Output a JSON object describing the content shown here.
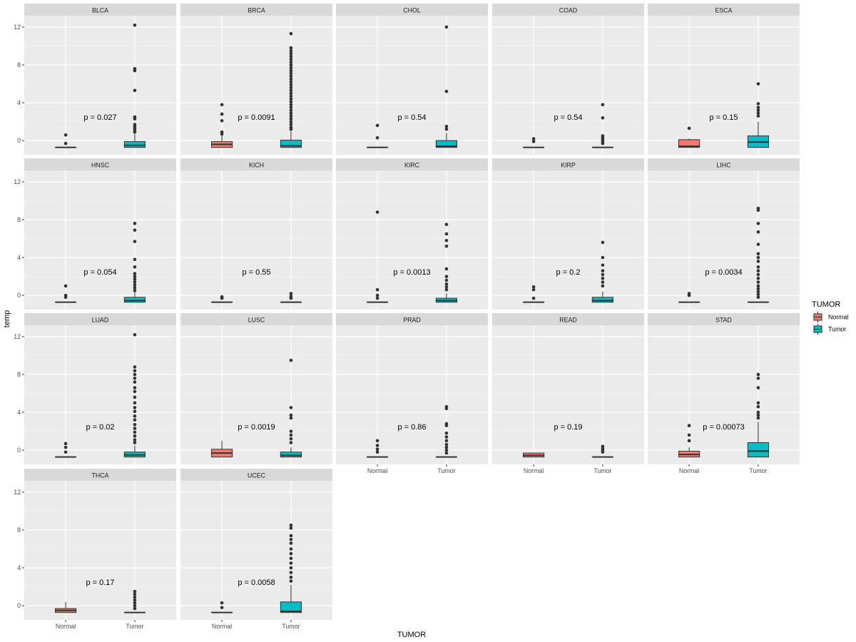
{
  "chart_data": {
    "type": "boxplot",
    "title": "",
    "xlabel": "TUMOR",
    "ylabel": "temp",
    "ylim": [
      -1.5,
      13.2
    ],
    "y_ticks": [
      0,
      4,
      8,
      12
    ],
    "x_categories": [
      "Normal",
      "Tumor"
    ],
    "legend": {
      "title": "TUMOR",
      "position": "right",
      "entries": [
        {
          "label": "Normal",
          "color": "#F8766D"
        },
        {
          "label": "Tumor",
          "color": "#00BFC4"
        }
      ]
    },
    "panels": [
      {
        "name": "BLCA",
        "p_label": "p = 0.027",
        "boxes": [
          {
            "group": "Normal",
            "q1": -0.72,
            "median": -0.72,
            "q3": -0.72,
            "whisker_low": -0.72,
            "whisker_high": -0.72,
            "outliers": [
              0.6,
              -0.3
            ]
          },
          {
            "group": "Tumor",
            "q1": -0.72,
            "median": -0.5,
            "q3": -0.1,
            "whisker_low": -0.72,
            "whisker_high": 0.7,
            "outliers": [
              12.2,
              7.6,
              7.4,
              5.3,
              2.5,
              2.3,
              1.7,
              1.5,
              1.3,
              1.1,
              0.9
            ]
          }
        ]
      },
      {
        "name": "BRCA",
        "p_label": "p = 0.0091",
        "boxes": [
          {
            "group": "Normal",
            "q1": -0.72,
            "median": -0.4,
            "q3": -0.1,
            "whisker_low": -0.72,
            "whisker_high": 0.6,
            "outliers": [
              3.8,
              2.8,
              2.1,
              0.9,
              0.7
            ]
          },
          {
            "group": "Tumor",
            "q1": -0.72,
            "median": -0.55,
            "q3": 0.05,
            "whisker_low": -0.72,
            "whisker_high": 1.0,
            "outliers": [
              11.3,
              9.8,
              9.5,
              9.2,
              8.9,
              8.6,
              8.3,
              8.0,
              7.7,
              7.4,
              7.1,
              6.8,
              6.5,
              6.2,
              5.9,
              5.6,
              5.3,
              5.0,
              4.7,
              4.4,
              4.1,
              3.8,
              3.5,
              3.2,
              2.9,
              2.6,
              2.3,
              2.0,
              1.7,
              1.4,
              1.2
            ]
          }
        ]
      },
      {
        "name": "CHOL",
        "p_label": "p = 0.54",
        "boxes": [
          {
            "group": "Normal",
            "q1": -0.72,
            "median": -0.72,
            "q3": -0.72,
            "whisker_low": -0.72,
            "whisker_high": -0.72,
            "outliers": [
              1.6,
              0.3
            ]
          },
          {
            "group": "Tumor",
            "q1": -0.72,
            "median": -0.6,
            "q3": 0.0,
            "whisker_low": -0.72,
            "whisker_high": 0.8,
            "outliers": [
              12.0,
              5.2,
              1.5,
              1.2
            ]
          }
        ]
      },
      {
        "name": "COAD",
        "p_label": "p = 0.54",
        "boxes": [
          {
            "group": "Normal",
            "q1": -0.72,
            "median": -0.72,
            "q3": -0.72,
            "whisker_low": -0.72,
            "whisker_high": -0.72,
            "outliers": [
              0.2,
              -0.1
            ]
          },
          {
            "group": "Tumor",
            "q1": -0.72,
            "median": -0.72,
            "q3": -0.72,
            "whisker_low": -0.72,
            "whisker_high": -0.72,
            "outliers": [
              3.8,
              2.4,
              0.5,
              0.3,
              0.1,
              -0.1,
              -0.3
            ]
          }
        ]
      },
      {
        "name": "ESCA",
        "p_label": "p = 0.15",
        "boxes": [
          {
            "group": "Normal",
            "q1": -0.72,
            "median": -0.6,
            "q3": 0.1,
            "whisker_low": -0.72,
            "whisker_high": 0.2,
            "outliers": [
              1.3
            ]
          },
          {
            "group": "Tumor",
            "q1": -0.72,
            "median": -0.15,
            "q3": 0.5,
            "whisker_low": -0.72,
            "whisker_high": 2.0,
            "outliers": [
              6.0,
              3.9,
              3.5,
              3.2,
              2.9,
              2.6
            ]
          }
        ]
      },
      {
        "name": "HNSC",
        "p_label": "p = 0.054",
        "boxes": [
          {
            "group": "Normal",
            "q1": -0.72,
            "median": -0.72,
            "q3": -0.72,
            "whisker_low": -0.72,
            "whisker_high": -0.72,
            "outliers": [
              1.0,
              0.0,
              -0.2
            ]
          },
          {
            "group": "Tumor",
            "q1": -0.72,
            "median": -0.55,
            "q3": -0.2,
            "whisker_low": -0.72,
            "whisker_high": 0.3,
            "outliers": [
              7.6,
              6.9,
              5.7,
              3.8,
              3.0,
              2.3,
              2.0,
              1.7,
              1.4,
              1.1,
              0.8,
              0.5
            ]
          }
        ]
      },
      {
        "name": "KICH",
        "p_label": "p = 0.55",
        "boxes": [
          {
            "group": "Normal",
            "q1": -0.72,
            "median": -0.72,
            "q3": -0.72,
            "whisker_low": -0.72,
            "whisker_high": -0.72,
            "outliers": [
              -0.15,
              -0.3
            ]
          },
          {
            "group": "Tumor",
            "q1": -0.72,
            "median": -0.72,
            "q3": -0.72,
            "whisker_low": -0.72,
            "whisker_high": -0.72,
            "outliers": [
              0.2,
              -0.1,
              -0.3
            ]
          }
        ]
      },
      {
        "name": "KIRC",
        "p_label": "p = 0.0013",
        "boxes": [
          {
            "group": "Normal",
            "q1": -0.72,
            "median": -0.72,
            "q3": -0.72,
            "whisker_low": -0.72,
            "whisker_high": -0.72,
            "outliers": [
              8.8,
              0.6,
              0.0,
              -0.3
            ]
          },
          {
            "group": "Tumor",
            "q1": -0.72,
            "median": -0.55,
            "q3": -0.3,
            "whisker_low": -0.72,
            "whisker_high": 0.2,
            "outliers": [
              7.5,
              6.5,
              5.8,
              5.2,
              2.8,
              2.0,
              1.6,
              1.2,
              0.9,
              0.6
            ]
          }
        ]
      },
      {
        "name": "KIRP",
        "p_label": "p = 0.2",
        "boxes": [
          {
            "group": "Normal",
            "q1": -0.72,
            "median": -0.72,
            "q3": -0.72,
            "whisker_low": -0.72,
            "whisker_high": -0.72,
            "outliers": [
              0.9,
              0.6,
              -0.3
            ]
          },
          {
            "group": "Tumor",
            "q1": -0.72,
            "median": -0.55,
            "q3": -0.2,
            "whisker_low": -0.72,
            "whisker_high": 0.4,
            "outliers": [
              5.6,
              4.0,
              3.2,
              2.6,
              2.2,
              1.8,
              1.4,
              1.0
            ]
          }
        ]
      },
      {
        "name": "LIHC",
        "p_label": "p = 0.0034",
        "boxes": [
          {
            "group": "Normal",
            "q1": -0.72,
            "median": -0.72,
            "q3": -0.72,
            "whisker_low": -0.72,
            "whisker_high": -0.72,
            "outliers": [
              0.2,
              0.0
            ]
          },
          {
            "group": "Tumor",
            "q1": -0.72,
            "median": -0.72,
            "q3": -0.72,
            "whisker_low": -0.72,
            "whisker_high": -0.72,
            "outliers": [
              9.2,
              9.0,
              7.6,
              6.7,
              5.4,
              4.4,
              4.0,
              3.6,
              3.0,
              2.6,
              2.2,
              1.8,
              1.4,
              1.0,
              0.7,
              0.4,
              0.1,
              -0.2
            ]
          }
        ]
      },
      {
        "name": "LUAD",
        "p_label": "p = 0.02",
        "boxes": [
          {
            "group": "Normal",
            "q1": -0.72,
            "median": -0.72,
            "q3": -0.72,
            "whisker_low": -0.72,
            "whisker_high": -0.72,
            "outliers": [
              0.7,
              0.3,
              -0.2
            ]
          },
          {
            "group": "Tumor",
            "q1": -0.72,
            "median": -0.5,
            "q3": -0.2,
            "whisker_low": -0.72,
            "whisker_high": 0.5,
            "outliers": [
              12.2,
              8.8,
              8.4,
              8.0,
              7.6,
              7.2,
              6.6,
              6.2,
              5.6,
              5.0,
              4.5,
              4.1,
              3.6,
              3.2,
              2.7,
              2.3,
              1.9,
              1.5,
              1.1,
              0.8
            ]
          }
        ]
      },
      {
        "name": "LUSC",
        "p_label": "p = 0.0019",
        "boxes": [
          {
            "group": "Normal",
            "q1": -0.72,
            "median": -0.3,
            "q3": 0.1,
            "whisker_low": -0.72,
            "whisker_high": 1.0,
            "outliers": []
          },
          {
            "group": "Tumor",
            "q1": -0.72,
            "median": -0.55,
            "q3": -0.2,
            "whisker_low": -0.72,
            "whisker_high": 0.3,
            "outliers": [
              9.5,
              4.5,
              3.7,
              3.4,
              2.0,
              1.6,
              1.2,
              0.8
            ]
          }
        ]
      },
      {
        "name": "PRAD",
        "p_label": "p = 0.86",
        "boxes": [
          {
            "group": "Normal",
            "q1": -0.72,
            "median": -0.72,
            "q3": -0.72,
            "whisker_low": -0.72,
            "whisker_high": -0.72,
            "outliers": [
              1.0,
              0.5,
              0.1,
              -0.2
            ]
          },
          {
            "group": "Tumor",
            "q1": -0.72,
            "median": -0.72,
            "q3": -0.72,
            "whisker_low": -0.72,
            "whisker_high": -0.72,
            "outliers": [
              4.6,
              4.4,
              2.8,
              2.6,
              1.8,
              1.4,
              1.0,
              0.6,
              0.3,
              0.0,
              -0.3
            ]
          }
        ]
      },
      {
        "name": "READ",
        "p_label": "p = 0.19",
        "boxes": [
          {
            "group": "Normal",
            "q1": -0.72,
            "median": -0.55,
            "q3": -0.3,
            "whisker_low": -0.72,
            "whisker_high": -0.3,
            "outliers": []
          },
          {
            "group": "Tumor",
            "q1": -0.72,
            "median": -0.72,
            "q3": -0.72,
            "whisker_low": -0.72,
            "whisker_high": -0.72,
            "outliers": [
              0.4,
              0.2,
              0.0,
              -0.2
            ]
          }
        ]
      },
      {
        "name": "STAD",
        "p_label": "p = 0.00073",
        "boxes": [
          {
            "group": "Normal",
            "q1": -0.72,
            "median": -0.45,
            "q3": -0.1,
            "whisker_low": -0.72,
            "whisker_high": 0.3,
            "outliers": [
              2.6,
              1.6,
              1.0
            ]
          },
          {
            "group": "Tumor",
            "q1": -0.72,
            "median": -0.1,
            "q3": 0.8,
            "whisker_low": -0.72,
            "whisker_high": 3.0,
            "outliers": [
              8.0,
              7.6,
              6.6,
              5.0,
              4.6,
              4.0,
              3.7,
              3.4
            ]
          }
        ]
      },
      {
        "name": "THCA",
        "p_label": "p = 0.17",
        "boxes": [
          {
            "group": "Normal",
            "q1": -0.72,
            "median": -0.5,
            "q3": -0.3,
            "whisker_low": -0.72,
            "whisker_high": 0.4,
            "outliers": []
          },
          {
            "group": "Tumor",
            "q1": -0.72,
            "median": -0.72,
            "q3": -0.72,
            "whisker_low": -0.72,
            "whisker_high": -0.72,
            "outliers": [
              1.5,
              1.2,
              0.9,
              0.6,
              0.3,
              0.0,
              -0.3
            ]
          }
        ]
      },
      {
        "name": "UCEC",
        "p_label": "p = 0.0058",
        "boxes": [
          {
            "group": "Normal",
            "q1": -0.72,
            "median": -0.72,
            "q3": -0.72,
            "whisker_low": -0.72,
            "whisker_high": -0.72,
            "outliers": [
              0.3,
              -0.2
            ]
          },
          {
            "group": "Tumor",
            "q1": -0.72,
            "median": -0.6,
            "q3": 0.4,
            "whisker_low": -0.72,
            "whisker_high": 2.2,
            "outliers": [
              8.5,
              8.2,
              7.4,
              7.0,
              6.6,
              6.0,
              5.5,
              5.0,
              4.5,
              4.0,
              3.5,
              3.0,
              2.6
            ]
          }
        ]
      }
    ]
  }
}
